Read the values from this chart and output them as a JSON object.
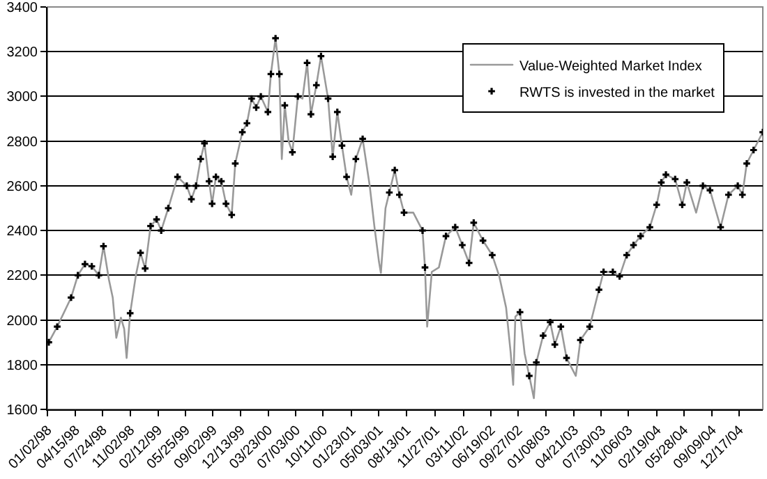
{
  "chart_data": {
    "type": "line",
    "xlim": [
      "1998-01-02",
      "2005-03-14"
    ],
    "ylim": [
      1600,
      3400
    ],
    "yticks": [
      1600,
      1800,
      2000,
      2200,
      2400,
      2600,
      2800,
      3000,
      3200,
      3400
    ],
    "xticks": [
      {
        "value": "1998-01-02",
        "label": "01/02/98"
      },
      {
        "value": "1998-04-15",
        "label": "04/15/98"
      },
      {
        "value": "1998-07-24",
        "label": "07/24/98"
      },
      {
        "value": "1998-11-02",
        "label": "11/02/98"
      },
      {
        "value": "1999-02-12",
        "label": "02/12/99"
      },
      {
        "value": "1999-05-25",
        "label": "05/25/99"
      },
      {
        "value": "1999-09-02",
        "label": "09/02/99"
      },
      {
        "value": "1999-12-13",
        "label": "12/13/99"
      },
      {
        "value": "2000-03-23",
        "label": "03/23/00"
      },
      {
        "value": "2000-07-03",
        "label": "07/03/00"
      },
      {
        "value": "2000-10-11",
        "label": "10/11/00"
      },
      {
        "value": "2001-01-23",
        "label": "01/23/01"
      },
      {
        "value": "2001-05-03",
        "label": "05/03/01"
      },
      {
        "value": "2001-08-13",
        "label": "08/13/01"
      },
      {
        "value": "2001-11-27",
        "label": "11/27/01"
      },
      {
        "value": "2002-03-11",
        "label": "03/11/02"
      },
      {
        "value": "2002-06-19",
        "label": "06/19/02"
      },
      {
        "value": "2002-09-27",
        "label": "09/27/02"
      },
      {
        "value": "2003-01-08",
        "label": "01/08/03"
      },
      {
        "value": "2003-04-21",
        "label": "04/21/03"
      },
      {
        "value": "2003-07-30",
        "label": "07/30/03"
      },
      {
        "value": "2003-11-06",
        "label": "11/06/03"
      },
      {
        "value": "2004-02-19",
        "label": "02/19/04"
      },
      {
        "value": "2004-05-28",
        "label": "05/28/04"
      },
      {
        "value": "2004-09-09",
        "label": "09/09/04"
      },
      {
        "value": "2004-12-17",
        "label": "12/17/04"
      }
    ],
    "grid": "y",
    "legend": "top right",
    "series": [
      {
        "name": "Value-Weighted Market Index",
        "color": "#999999",
        "line_style": "solid",
        "x": [
          "1998-01-07",
          "1998-02-07",
          "1998-03-30",
          "1998-04-24",
          "1998-05-20",
          "1998-06-14",
          "1998-07-10",
          "1998-07-27",
          "1998-08-16",
          "1998-08-30",
          "1998-09-12",
          "1998-09-29",
          "1998-10-11",
          "1998-10-20",
          "1998-11-02",
          "1998-11-23",
          "1998-12-10",
          "1998-12-27",
          "1999-01-16",
          "1999-02-07",
          "1999-02-24",
          "1999-03-22",
          "1999-04-25",
          "1999-05-29",
          "1999-06-15",
          "1999-07-02",
          "1999-07-19",
          "1999-08-02",
          "1999-08-19",
          "1999-08-30",
          "1999-09-13",
          "1999-10-03",
          "1999-10-20",
          "1999-11-10",
          "1999-11-23",
          "1999-12-19",
          "2000-01-05",
          "2000-01-22",
          "2000-02-08",
          "2000-02-25",
          "2000-03-22",
          "2000-04-02",
          "2000-04-19",
          "2000-05-03",
          "2000-05-12",
          "2000-05-23",
          "2000-06-06",
          "2000-06-20",
          "2000-07-10",
          "2000-07-27",
          "2000-08-13",
          "2000-08-27",
          "2000-09-16",
          "2000-10-03",
          "2000-10-29",
          "2000-11-15",
          "2000-12-02",
          "2000-12-19",
          "2001-01-05",
          "2001-01-22",
          "2001-02-08",
          "2001-03-05",
          "2001-03-31",
          "2001-04-17",
          "2001-05-04",
          "2001-05-11",
          "2001-05-28",
          "2001-06-11",
          "2001-07-01",
          "2001-07-18",
          "2001-08-04",
          "2001-09-07",
          "2001-10-11",
          "2001-10-20",
          "2001-10-28",
          "2001-11-14",
          "2001-12-10",
          "2002-01-05",
          "2002-02-08",
          "2002-03-06",
          "2002-03-31",
          "2002-04-17",
          "2002-05-21",
          "2002-06-24",
          "2002-07-20",
          "2002-08-14",
          "2002-08-31",
          "2002-09-09",
          "2002-09-17",
          "2002-10-04",
          "2002-10-21",
          "2002-11-07",
          "2002-11-24",
          "2002-12-03",
          "2002-12-28",
          "2003-01-23",
          "2003-02-09",
          "2003-03-03",
          "2003-03-24",
          "2003-04-27",
          "2003-05-14",
          "2003-06-17",
          "2003-07-21",
          "2003-08-07",
          "2003-09-10",
          "2003-10-05",
          "2003-10-31",
          "2003-11-25",
          "2003-12-21",
          "2004-01-24",
          "2004-02-18",
          "2004-03-06",
          "2004-03-23",
          "2004-04-26",
          "2004-05-22",
          "2004-06-08",
          "2004-07-12",
          "2004-08-06",
          "2004-09-01",
          "2004-10-10",
          "2004-11-08",
          "2004-12-12",
          "2004-12-29",
          "2005-01-14",
          "2005-02-08",
          "2005-03-14"
        ],
        "values": [
          1900,
          1970,
          2100,
          2200,
          2250,
          2240,
          2200,
          2330,
          2180,
          2100,
          1920,
          2010,
          1960,
          1830,
          2030,
          2200,
          2300,
          2230,
          2420,
          2450,
          2400,
          2500,
          2640,
          2600,
          2540,
          2600,
          2720,
          2790,
          2620,
          2520,
          2640,
          2620,
          2520,
          2470,
          2700,
          2840,
          2880,
          2990,
          2950,
          3000,
          2930,
          3100,
          3260,
          3100,
          2720,
          2960,
          2800,
          2750,
          3000,
          2990,
          3150,
          2920,
          3050,
          3180,
          2990,
          2730,
          2930,
          2780,
          2640,
          2560,
          2720,
          2810,
          2600,
          2420,
          2260,
          2210,
          2500,
          2570,
          2670,
          2560,
          2480,
          2480,
          2400,
          2235,
          1970,
          2215,
          2235,
          2375,
          2415,
          2335,
          2255,
          2435,
          2355,
          2290,
          2195,
          2055,
          1850,
          1710,
          2015,
          2035,
          1850,
          1750,
          1650,
          1810,
          1930,
          1990,
          1890,
          1970,
          1830,
          1750,
          1910,
          1970,
          2135,
          2215,
          2215,
          2195,
          2290,
          2335,
          2375,
          2415,
          2515,
          2615,
          2650,
          2630,
          2515,
          2615,
          2480,
          2600,
          2580,
          2415,
          2560,
          2600,
          2560,
          2700,
          2760,
          2840
        ]
      },
      {
        "name": "RWTS is invested in the market",
        "type": "scatter",
        "color": "#000000",
        "marker": "cross",
        "x": [
          "1998-01-07",
          "1998-02-07",
          "1998-03-30",
          "1998-04-24",
          "1998-05-20",
          "1998-06-14",
          "1998-07-10",
          "1998-07-27",
          "1998-11-02",
          "1998-12-10",
          "1998-12-27",
          "1999-01-16",
          "1999-02-07",
          "1999-02-24",
          "1999-03-22",
          "1999-04-25",
          "1999-05-29",
          "1999-06-15",
          "1999-07-02",
          "1999-07-19",
          "1999-08-02",
          "1999-08-19",
          "1999-08-30",
          "1999-09-13",
          "1999-10-03",
          "1999-10-20",
          "1999-11-10",
          "1999-11-23",
          "1999-12-19",
          "2000-01-05",
          "2000-01-22",
          "2000-02-08",
          "2000-02-25",
          "2000-03-22",
          "2000-04-02",
          "2000-04-19",
          "2000-05-03",
          "2000-05-23",
          "2000-06-20",
          "2000-07-10",
          "2000-08-13",
          "2000-08-27",
          "2000-09-16",
          "2000-10-03",
          "2000-10-29",
          "2000-11-15",
          "2000-12-02",
          "2000-12-19",
          "2001-01-05",
          "2001-02-08",
          "2001-03-05",
          "2001-06-11",
          "2001-07-01",
          "2001-07-18",
          "2001-08-04",
          "2001-10-11",
          "2001-10-20",
          "2002-01-05",
          "2002-02-08",
          "2002-03-06",
          "2002-03-31",
          "2002-04-17",
          "2002-05-21",
          "2002-06-24",
          "2002-10-04",
          "2002-11-07",
          "2002-12-03",
          "2002-12-28",
          "2003-01-23",
          "2003-02-09",
          "2003-03-03",
          "2003-03-24",
          "2003-05-14",
          "2003-06-17",
          "2003-07-21",
          "2003-08-07",
          "2003-09-10",
          "2003-10-05",
          "2003-10-31",
          "2003-11-25",
          "2003-12-21",
          "2004-01-24",
          "2004-02-18",
          "2004-03-06",
          "2004-03-23",
          "2004-04-26",
          "2004-05-22",
          "2004-06-08",
          "2004-08-06",
          "2004-09-01",
          "2004-10-10",
          "2004-11-08",
          "2004-12-12",
          "2004-12-29",
          "2005-01-14",
          "2005-02-08",
          "2005-03-14"
        ],
        "values": [
          1900,
          1970,
          2100,
          2200,
          2250,
          2240,
          2200,
          2330,
          2030,
          2300,
          2230,
          2420,
          2450,
          2400,
          2500,
          2640,
          2600,
          2540,
          2600,
          2720,
          2790,
          2620,
          2520,
          2640,
          2620,
          2520,
          2470,
          2700,
          2840,
          2880,
          2990,
          2950,
          3000,
          2930,
          3100,
          3260,
          3100,
          2960,
          2750,
          3000,
          3150,
          2920,
          3050,
          3180,
          2990,
          2730,
          2930,
          2780,
          2640,
          2720,
          2810,
          2570,
          2670,
          2560,
          2480,
          2400,
          2235,
          2375,
          2415,
          2335,
          2255,
          2435,
          2355,
          2290,
          2035,
          1750,
          1810,
          1930,
          1990,
          1890,
          1970,
          1830,
          1910,
          1970,
          2135,
          2215,
          2215,
          2195,
          2290,
          2335,
          2375,
          2415,
          2515,
          2615,
          2650,
          2630,
          2515,
          2615,
          2600,
          2580,
          2415,
          2560,
          2600,
          2560,
          2700,
          2760,
          2840
        ]
      }
    ]
  }
}
